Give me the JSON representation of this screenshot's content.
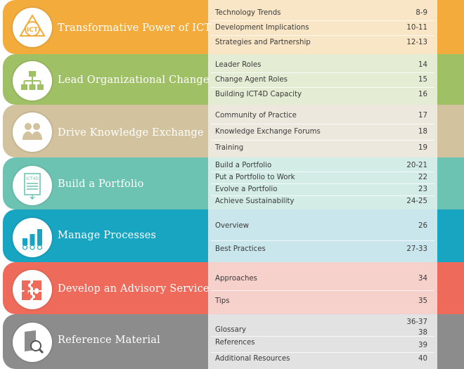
{
  "sections": [
    {
      "title": "Transformative Power of ICT",
      "icon": "ict-logo-icon",
      "color": "#f3ac3c",
      "panel_color": "#f8e6c6",
      "entries": [
        {
          "label": "Technology Trends",
          "page": "8-9"
        },
        {
          "label": "Development Implications",
          "page": "10-11"
        },
        {
          "label": "Strategies and Partnership",
          "page": "12-13"
        }
      ]
    },
    {
      "title": "Lead Organizational Change",
      "icon": "org-chart-icon",
      "color": "#9fc065",
      "panel_color": "#e4ecd3",
      "entries": [
        {
          "label": "Leader Roles",
          "page": "14"
        },
        {
          "label": "Change Agent Roles",
          "page": "15"
        },
        {
          "label": "Building ICT4D Capacity",
          "page": "16"
        }
      ]
    },
    {
      "title": "Drive Knowledge Exchange",
      "icon": "people-exchange-icon",
      "color": "#d2c29d",
      "panel_color": "#ede8dd",
      "entries": [
        {
          "label": "Community of Practice",
          "page": "17"
        },
        {
          "label": "Knowledge Exchange Forums",
          "page": "18"
        },
        {
          "label": "Training",
          "page": "19"
        }
      ]
    },
    {
      "title": "Build a Portfolio",
      "icon": "portfolio-document-icon",
      "color": "#6dc3b2",
      "panel_color": "#d3ece6",
      "entries": [
        {
          "label": "Build a Portfolio",
          "page": "20-21"
        },
        {
          "label": "Put a Portfolio to Work",
          "page": "22"
        },
        {
          "label": "Evolve a Portfolio",
          "page": "23"
        },
        {
          "label": "Achieve Sustainability",
          "page": "24-25"
        }
      ]
    },
    {
      "title": "Manage Processes",
      "icon": "bar-checks-icon",
      "color": "#17a5c1",
      "panel_color": "#c9e6ec",
      "entries": [
        {
          "label": "Overview",
          "page": "26"
        },
        {
          "label": "Best Practices",
          "page": "27-33"
        }
      ]
    },
    {
      "title": "Develop an Advisory Service",
      "icon": "puzzle-icon",
      "color": "#ee6a5a",
      "panel_color": "#f6d0cb",
      "entries": [
        {
          "label": "Approaches",
          "page": "34"
        },
        {
          "label": "Tips",
          "page": "35"
        }
      ]
    },
    {
      "title": "Reference Material",
      "icon": "book-search-icon",
      "color": "#8c8c8c",
      "panel_color": "#e2e2e2",
      "entries": [
        {
          "label": "Glossary",
          "page": "36-37"
        },
        {
          "label": "",
          "page": "38"
        },
        {
          "label": "References",
          "page": "39"
        },
        {
          "label": "Additional Resources",
          "page": "40"
        }
      ]
    }
  ]
}
